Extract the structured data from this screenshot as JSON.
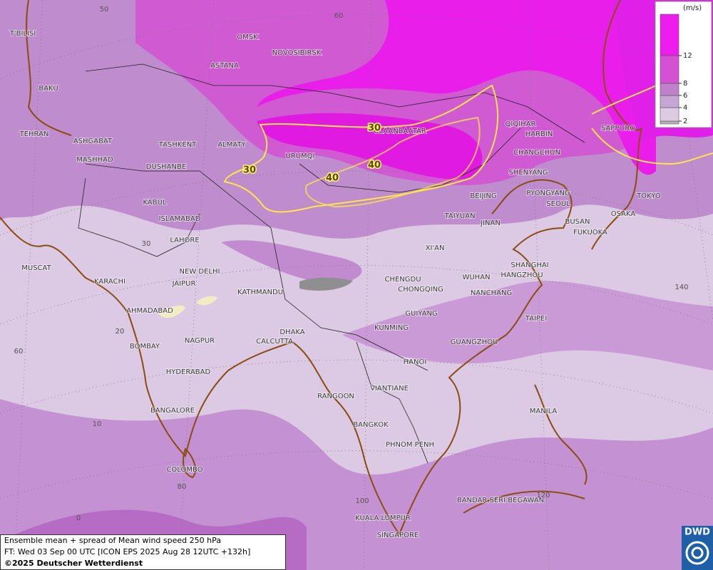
{
  "map": {
    "cities": [
      "OMSK",
      "NOVOSIBIRSK",
      "ASTANA",
      "T'BILISI",
      "BAKU",
      "TEHRAN",
      "ASHGABAT",
      "MASHHAD",
      "TASHKENT",
      "ALMATY",
      "DUSHANBE",
      "URUMQI",
      "ULAANBAATAR",
      "QIQIHAR",
      "HARBIN",
      "SAPPORO",
      "CHANGCHUN",
      "SHENYANG",
      "PYONGYANG",
      "BEIJING",
      "SEOUL",
      "TOKYO",
      "OSAKA",
      "BUSAN",
      "FUKUOKA",
      "TAIYUAN",
      "JINAN",
      "KABUL",
      "ISLAMABAD",
      "LAHORE",
      "XI'AN",
      "SHANGHAI",
      "HANGZHOU",
      "NEW DELHI",
      "MUSCAT",
      "KARACHI",
      "JAIPUR",
      "CHENGDU",
      "WUHAN",
      "CHONGQING",
      "KATHMANDU",
      "NANCHANG",
      "AHMADABAD",
      "GUIYANG",
      "TAIPEI",
      "KUNMING",
      "DHAKA",
      "CALCUTTA",
      "GUANGZHOU",
      "BOMBAY",
      "NAGPUR",
      "HYDERABAD",
      "HANOI",
      "VIANTIANE",
      "RANGOON",
      "BANGALORE",
      "MANILA",
      "BANGKOK",
      "PHNOM PENH",
      "COLOMBO",
      "BANDAR SERI BEGAWAN",
      "KUALA LUMPUR",
      "SINGAPORE"
    ],
    "grid_labels": [
      50,
      60,
      30,
      20,
      10,
      0,
      60,
      80,
      100,
      120,
      140
    ],
    "contour_labels": [
      30,
      30,
      40,
      40
    ],
    "contour_color": "#ffe44a",
    "legend": {
      "unit": "(m/s)",
      "ticks": [
        2,
        4,
        6,
        8,
        12
      ],
      "colors": [
        "#b4b4b4",
        "#dccbe2",
        "#c6a6d6",
        "#bf80cc",
        "#d650d6",
        "#ee1cee"
      ]
    },
    "footer": {
      "line1": "Ensemble mean + spread of Mean wind speed 250 hPa",
      "line2": "FT: Wed 03 Sep 00 UTC [ICON EPS 2025 Aug 28 12UTC +132h]",
      "line3": "©2025 Deutscher Wetterdienst"
    },
    "logo": "DWD"
  }
}
